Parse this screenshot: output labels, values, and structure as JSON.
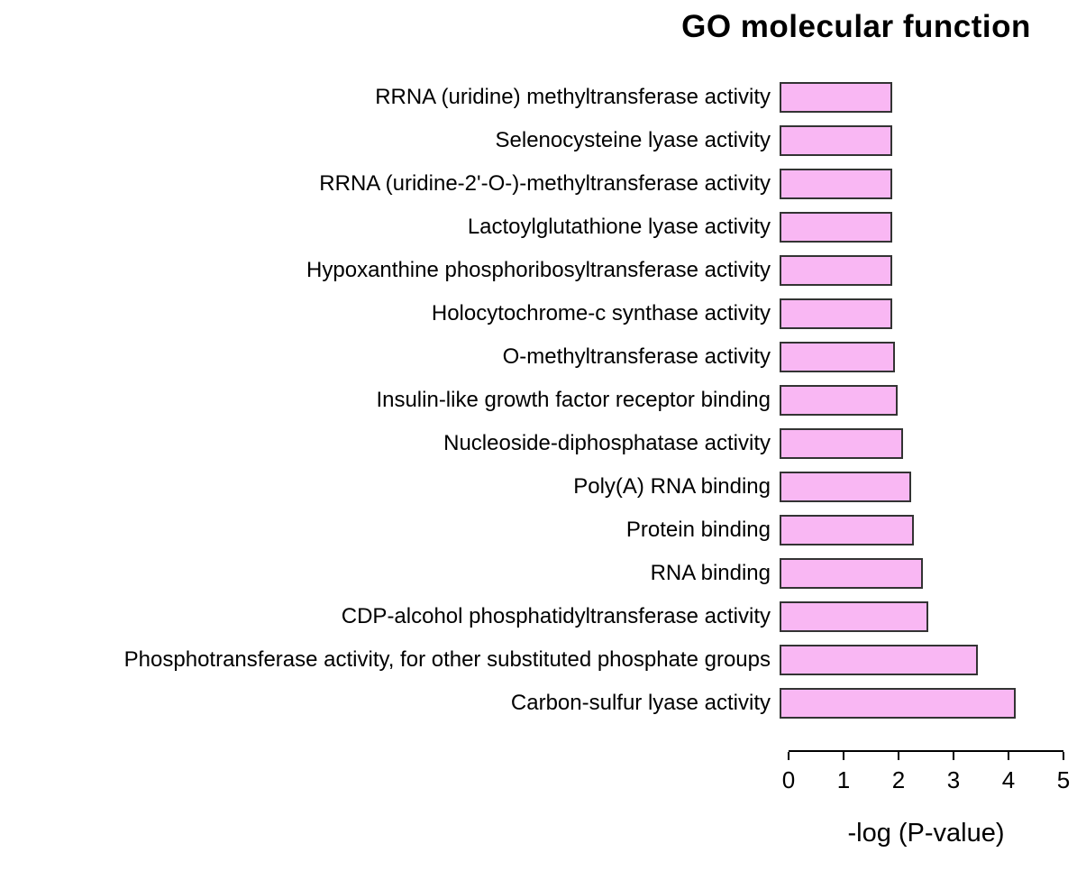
{
  "title": "GO molecular function",
  "chart_data": {
    "type": "bar",
    "orientation": "horizontal",
    "title": "GO molecular function",
    "xlabel": "-log (P-value)",
    "ylabel": "",
    "xlim": [
      0,
      5
    ],
    "xticks": [
      0,
      1,
      2,
      3,
      4,
      5
    ],
    "grid": false,
    "legend": false,
    "bar_color": "#f9b7f3",
    "bar_border_color": "#333333",
    "categories": [
      "RRNA (uridine) methyltransferase activity",
      "Selenocysteine lyase activity",
      "RRNA (uridine-2'-O-)-methyltransferase activity",
      "Lactoylglutathione lyase activity",
      "Hypoxanthine phosphoribosyltransferase activity",
      "Holocytochrome-c synthase activity",
      "O-methyltransferase activity",
      "Insulin-like growth factor receptor binding",
      "Nucleoside-diphosphatase activity",
      "Poly(A) RNA binding",
      "Protein binding",
      "RNA binding",
      "CDP-alcohol phosphatidyltransferase activity",
      "Phosphotransferase activity, for other substituted phosphate groups",
      "Carbon-sulfur lyase activity"
    ],
    "values": [
      2.05,
      2.05,
      2.05,
      2.05,
      2.05,
      2.05,
      2.1,
      2.15,
      2.25,
      2.4,
      2.45,
      2.6,
      2.7,
      3.6,
      4.3
    ]
  }
}
